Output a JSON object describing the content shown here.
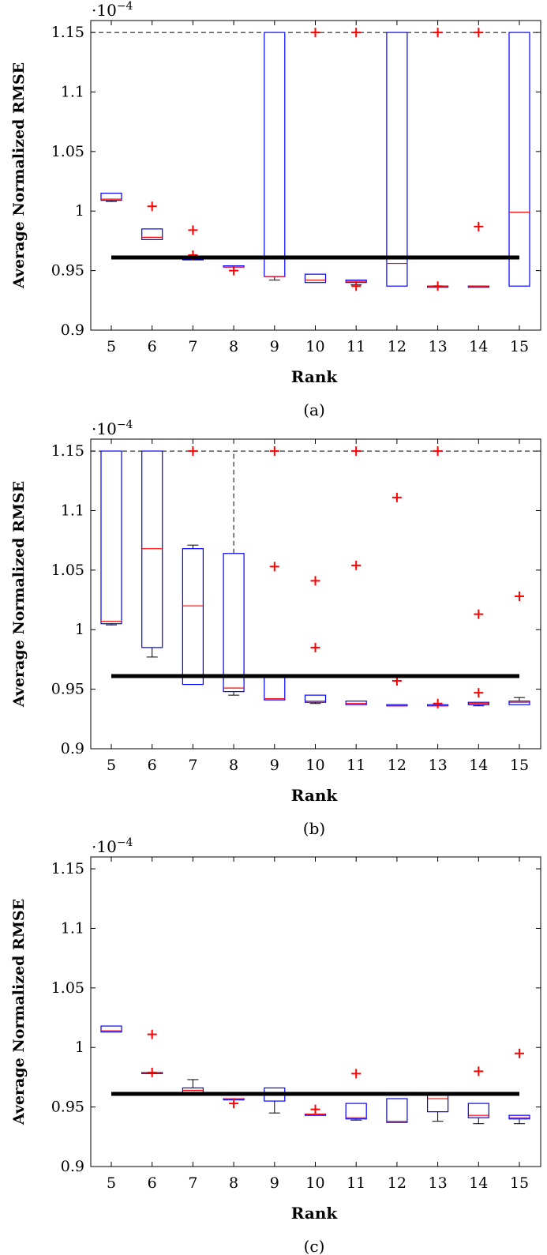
{
  "chart_data": [
    {
      "type": "box",
      "caption": "(a)",
      "xlabel": "Rank",
      "ylabel": "Average Normalized RMSE",
      "y_multiplier": "·10",
      "y_multiplier_exp": "−4",
      "ylim": [
        0.9,
        1.16
      ],
      "yticks": [
        0.9,
        0.95,
        1,
        1.05,
        1.1,
        1.15
      ],
      "ytick_labels": [
        "0.9",
        "0.95",
        "1",
        "1.05",
        "1.1",
        "1.15"
      ],
      "categories": [
        "5",
        "6",
        "7",
        "8",
        "9",
        "10",
        "11",
        "12",
        "13",
        "14",
        "15"
      ],
      "reference_line": 0.961,
      "cap_line": 1.15,
      "boxes": [
        {
          "q1": 1.009,
          "median": 1.01,
          "q3": 1.015,
          "whisker_low": 1.008,
          "whisker_high": 1.015,
          "outliers": []
        },
        {
          "q1": 0.976,
          "median": 0.978,
          "q3": 0.985,
          "whisker_low": 0.976,
          "whisker_high": 0.985,
          "outliers": [
            1.004
          ]
        },
        {
          "q1": 0.959,
          "median": 0.96,
          "q3": 0.961,
          "whisker_low": 0.959,
          "whisker_high": 0.961,
          "outliers": [
            0.984,
            0.963
          ]
        },
        {
          "q1": 0.953,
          "median": 0.953,
          "q3": 0.954,
          "whisker_low": 0.953,
          "whisker_high": 0.954,
          "outliers": [
            0.95
          ]
        },
        {
          "q1": 0.945,
          "median": 0.945,
          "q3": 1.15,
          "whisker_low": 0.942,
          "whisker_high": 1.15,
          "outliers": []
        },
        {
          "q1": 0.94,
          "median": 0.942,
          "q3": 0.947,
          "whisker_low": 0.94,
          "whisker_high": 0.947,
          "outliers": [
            1.15
          ]
        },
        {
          "q1": 0.94,
          "median": 0.941,
          "q3": 0.942,
          "whisker_low": 0.938,
          "whisker_high": 0.942,
          "outliers": [
            1.15,
            0.937
          ]
        },
        {
          "q1": 0.937,
          "median": 0.956,
          "q3": 1.15,
          "whisker_low": 0.937,
          "whisker_high": 1.15,
          "outliers": []
        },
        {
          "q1": 0.936,
          "median": 0.937,
          "q3": 0.937,
          "whisker_low": 0.936,
          "whisker_high": 0.937,
          "outliers": [
            1.15,
            0.937
          ]
        },
        {
          "q1": 0.936,
          "median": 0.937,
          "q3": 0.937,
          "whisker_low": 0.936,
          "whisker_high": 0.937,
          "outliers": [
            1.15,
            0.987
          ]
        },
        {
          "q1": 0.937,
          "median": 0.999,
          "q3": 1.15,
          "whisker_low": 0.937,
          "whisker_high": 1.15,
          "outliers": []
        }
      ]
    },
    {
      "type": "box",
      "caption": "(b)",
      "xlabel": "Rank",
      "ylabel": "Average Normalized RMSE",
      "y_multiplier": "·10",
      "y_multiplier_exp": "−4",
      "ylim": [
        0.9,
        1.16
      ],
      "yticks": [
        0.9,
        0.95,
        1,
        1.05,
        1.1,
        1.15
      ],
      "ytick_labels": [
        "0.9",
        "0.95",
        "1",
        "1.05",
        "1.1",
        "1.15"
      ],
      "categories": [
        "5",
        "6",
        "7",
        "8",
        "9",
        "10",
        "11",
        "12",
        "13",
        "14",
        "15"
      ],
      "reference_line": 0.961,
      "cap_line": 1.15,
      "boxes": [
        {
          "q1": 1.005,
          "median": 1.007,
          "q3": 1.15,
          "whisker_low": 1.004,
          "whisker_high": 1.15,
          "outliers": []
        },
        {
          "q1": 0.985,
          "median": 1.068,
          "q3": 1.15,
          "whisker_low": 0.977,
          "whisker_high": 1.15,
          "outliers": []
        },
        {
          "q1": 0.954,
          "median": 1.02,
          "q3": 1.068,
          "whisker_low": 0.954,
          "whisker_high": 1.071,
          "outliers": [
            1.15
          ]
        },
        {
          "q1": 0.948,
          "median": 0.951,
          "q3": 1.064,
          "whisker_low": 0.945,
          "whisker_high": 1.15,
          "outliers": []
        },
        {
          "q1": 0.941,
          "median": 0.942,
          "q3": 0.96,
          "whisker_low": 0.941,
          "whisker_high": 0.96,
          "outliers": [
            1.15,
            1.053
          ]
        },
        {
          "q1": 0.939,
          "median": 0.94,
          "q3": 0.945,
          "whisker_low": 0.938,
          "whisker_high": 0.945,
          "outliers": [
            1.041,
            0.985
          ]
        },
        {
          "q1": 0.937,
          "median": 0.938,
          "q3": 0.94,
          "whisker_low": 0.937,
          "whisker_high": 0.94,
          "outliers": [
            1.15,
            1.054
          ]
        },
        {
          "q1": 0.936,
          "median": 0.936,
          "q3": 0.937,
          "whisker_low": 0.936,
          "whisker_high": 0.937,
          "outliers": [
            1.111,
            0.957
          ]
        },
        {
          "q1": 0.936,
          "median": 0.936,
          "q3": 0.937,
          "whisker_low": 0.936,
          "whisker_high": 0.937,
          "outliers": [
            1.15,
            0.938
          ]
        },
        {
          "q1": 0.937,
          "median": 0.938,
          "q3": 0.939,
          "whisker_low": 0.936,
          "whisker_high": 0.939,
          "outliers": [
            1.013,
            0.947
          ]
        },
        {
          "q1": 0.937,
          "median": 0.939,
          "q3": 0.94,
          "whisker_low": 0.937,
          "whisker_high": 0.943,
          "outliers": [
            1.028
          ]
        }
      ]
    },
    {
      "type": "box",
      "caption": "(c)",
      "xlabel": "Rank",
      "ylabel": "Average Normalized RMSE",
      "y_multiplier": "·10",
      "y_multiplier_exp": "−4",
      "ylim": [
        0.9,
        1.16
      ],
      "yticks": [
        0.9,
        0.95,
        1,
        1.05,
        1.1,
        1.15
      ],
      "ytick_labels": [
        "0.9",
        "0.95",
        "1",
        "1.05",
        "1.1",
        "1.15"
      ],
      "categories": [
        "5",
        "6",
        "7",
        "8",
        "9",
        "10",
        "11",
        "12",
        "13",
        "14",
        "15"
      ],
      "reference_line": 0.961,
      "cap_line": null,
      "boxes": [
        {
          "q1": 1.013,
          "median": 1.014,
          "q3": 1.018,
          "whisker_low": 1.013,
          "whisker_high": 1.018,
          "outliers": []
        },
        {
          "q1": 0.978,
          "median": 0.979,
          "q3": 0.979,
          "whisker_low": 0.978,
          "whisker_high": 0.979,
          "outliers": [
            1.011,
            0.979
          ]
        },
        {
          "q1": 0.962,
          "median": 0.964,
          "q3": 0.966,
          "whisker_low": 0.962,
          "whisker_high": 0.973,
          "outliers": []
        },
        {
          "q1": 0.956,
          "median": 0.957,
          "q3": 0.957,
          "whisker_low": 0.956,
          "whisker_high": 0.957,
          "outliers": [
            0.953
          ]
        },
        {
          "q1": 0.955,
          "median": 0.962,
          "q3": 0.966,
          "whisker_low": 0.945,
          "whisker_high": 0.966,
          "outliers": []
        },
        {
          "q1": 0.944,
          "median": 0.944,
          "q3": 0.944,
          "whisker_low": 0.944,
          "whisker_high": 0.944,
          "outliers": [
            0.948
          ]
        },
        {
          "q1": 0.94,
          "median": 0.941,
          "q3": 0.953,
          "whisker_low": 0.939,
          "whisker_high": 0.953,
          "outliers": [
            0.978
          ]
        },
        {
          "q1": 0.937,
          "median": 0.938,
          "q3": 0.957,
          "whisker_low": 0.937,
          "whisker_high": 0.957,
          "outliers": []
        },
        {
          "q1": 0.946,
          "median": 0.957,
          "q3": 0.96,
          "whisker_low": 0.938,
          "whisker_high": 0.96,
          "outliers": []
        },
        {
          "q1": 0.941,
          "median": 0.943,
          "q3": 0.953,
          "whisker_low": 0.936,
          "whisker_high": 0.953,
          "outliers": [
            0.98
          ]
        },
        {
          "q1": 0.94,
          "median": 0.941,
          "q3": 0.943,
          "whisker_low": 0.936,
          "whisker_high": 0.943,
          "outliers": [
            0.995
          ]
        }
      ]
    }
  ]
}
